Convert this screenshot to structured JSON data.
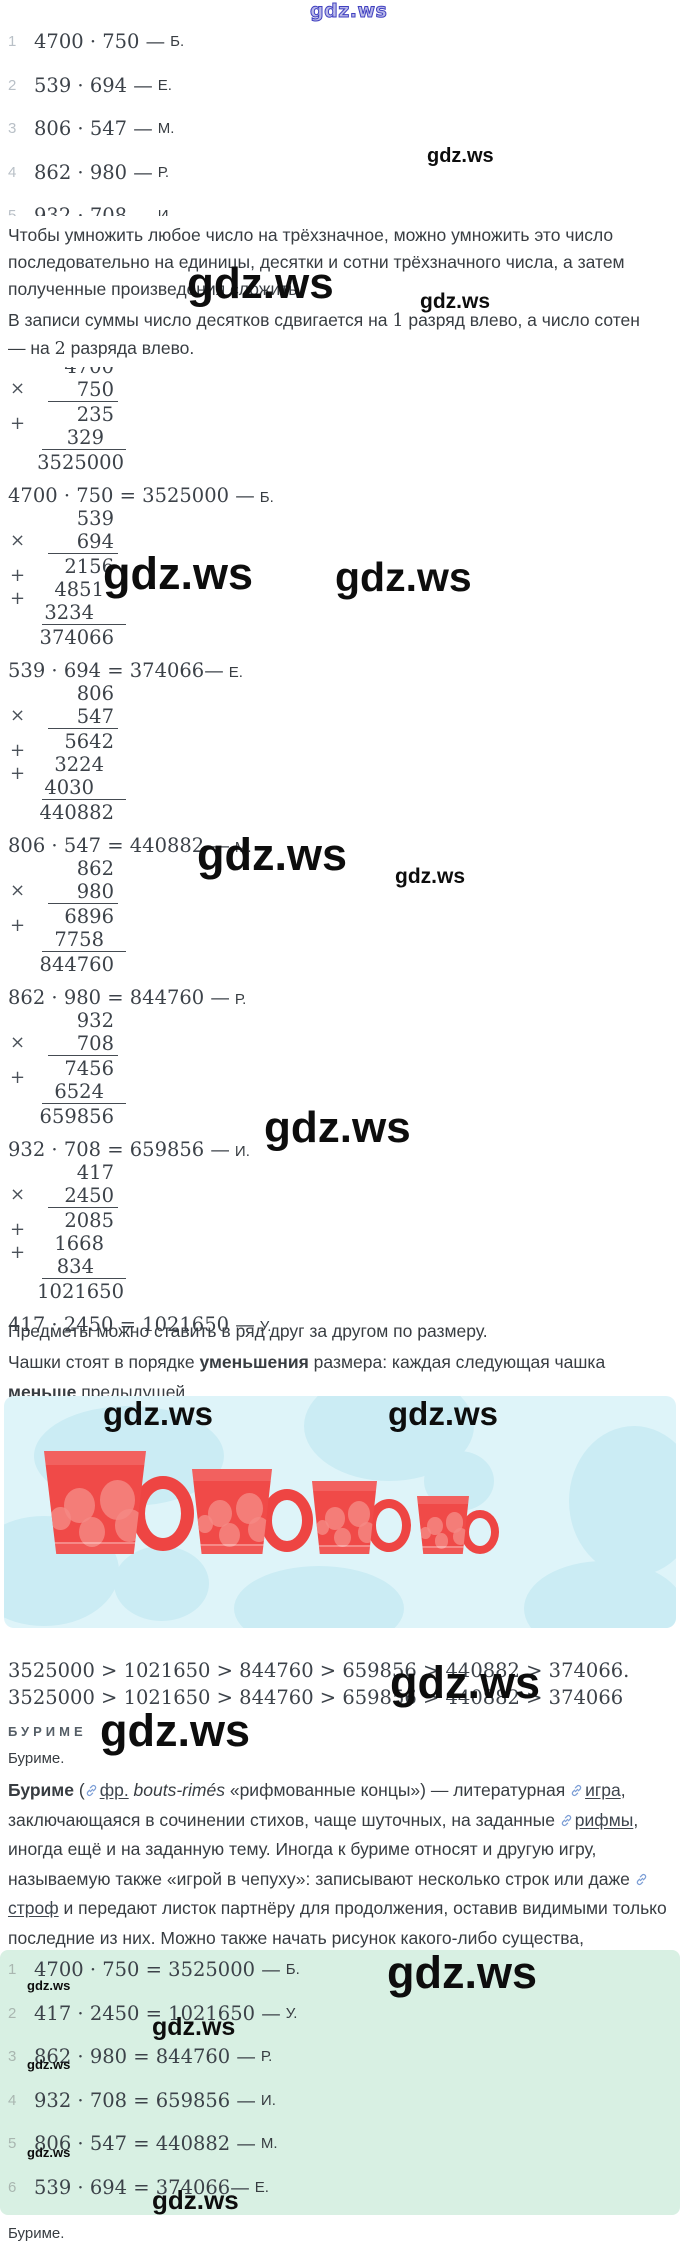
{
  "watermark": {
    "text": "gdz.ws"
  },
  "colors": {
    "answers_panel": "#d8f0e3",
    "cups_bg": "#def4f9",
    "cups_blob": "#cbecf4",
    "cup_red": "#f04a48",
    "link_blue": "#7d9fd6"
  },
  "problems": [
    {
      "num": "1",
      "expr": "4700 · 750 —",
      "letter": "Б."
    },
    {
      "num": "2",
      "expr": "539 · 694 —",
      "letter": "Е."
    },
    {
      "num": "3",
      "expr": "806 · 547 —",
      "letter": "М."
    },
    {
      "num": "4",
      "expr": "862 · 980 —",
      "letter": "Р."
    },
    {
      "num": "5",
      "expr": "932 · 708 —",
      "letter": "И."
    }
  ],
  "explanation": {
    "p1": "Чтобы умножить любое число на трёхзначное, можно умножить это число последовательно на единицы, десятки и сотни трёхзначного числа, а затем полученные произведения сложить.",
    "p2_parts": [
      {
        "style": "text",
        "text": "В записи суммы число десятков сдвигается на "
      },
      {
        "style": "serif",
        "text": "1"
      },
      {
        "style": "text",
        "text": " разряд влево, а число сотен — на "
      },
      {
        "style": "serif",
        "text": "2"
      },
      {
        "style": "text",
        "text": " разряда влево."
      }
    ]
  },
  "multiplications": [
    {
      "factors": [
        "4700",
        "750"
      ],
      "partials": [
        "235",
        "329"
      ],
      "result": "3525000",
      "result_shift": true,
      "equation": {
        "expr": "4700 · 750 = 3525000 —",
        "letter": "Б."
      }
    },
    {
      "factors": [
        "539",
        "694"
      ],
      "partials": [
        "2156",
        "4851",
        "3234"
      ],
      "result": "374066",
      "result_shift": false,
      "equation": {
        "expr": "539 · 694 = 374066—",
        "letter": "Е."
      }
    },
    {
      "factors": [
        "806",
        "547"
      ],
      "partials": [
        "5642",
        "3224",
        "4030"
      ],
      "result": "440882",
      "result_shift": false,
      "equation": {
        "expr": "806 · 547 = 440882 —",
        "letter": "М."
      }
    },
    {
      "factors": [
        "862",
        "980"
      ],
      "partials": [
        "6896",
        "7758"
      ],
      "result": "844760",
      "result_shift": false,
      "equation": {
        "expr": "862 · 980 = 844760 —",
        "letter": "Р."
      }
    },
    {
      "factors": [
        "932",
        "708"
      ],
      "partials": [
        "7456",
        "6524"
      ],
      "result": "659856",
      "result_shift": false,
      "equation": {
        "expr": "932 · 708 = 659856 —",
        "letter": "И."
      }
    },
    {
      "factors": [
        "417",
        "2450"
      ],
      "partials": [
        "2085",
        "1668",
        "834"
      ],
      "result": "1021650",
      "result_shift": true,
      "equation": {
        "expr": "417 · 2450 = 1021650 —",
        "letter": "У."
      }
    }
  ],
  "cups_text": {
    "line1": "Предметы можно ставить в ряд друг за другом по размеру.",
    "parts": [
      {
        "style": "text",
        "text": "Чашки стоят в порядке "
      },
      {
        "style": "bold",
        "text": "уменьшения"
      },
      {
        "style": "text",
        "text": " размера: каждая следующая чашка "
      },
      {
        "style": "bold",
        "text": "меньше"
      },
      {
        "style": "text",
        "text": " предыдущей."
      }
    ]
  },
  "cups_image": {
    "cup_count": 4
  },
  "inequalities": {
    "line1": "3525000 > 1021650 > 844760 > 659856 > 440882 > 374066.",
    "line2": "3525000 > 1021650 > 844760 > 659856 > 440882 > 374066"
  },
  "burime": {
    "caps": "БУРИМЕ",
    "word": "Буриме.",
    "bottom_word": "Буриме.",
    "paragraph_parts": [
      {
        "style": "bold",
        "text": "Буриме"
      },
      {
        "style": "text",
        "text": " ("
      },
      {
        "style": "link",
        "text": "фр."
      },
      {
        "style": "italic",
        "text": " bouts-rimés"
      },
      {
        "style": "text",
        "text": " «рифмованные концы») — литературная "
      },
      {
        "style": "link",
        "text": "игра"
      },
      {
        "style": "text",
        "text": ", заключающаяся в сочинении стихов, чаще шуточных, на заданные "
      },
      {
        "style": "link",
        "text": "рифмы"
      },
      {
        "style": "text",
        "text": ", иногда ещё и на заданную тему. Иногда к буриме относят и другую игру, называемую также «игрой в чепуху»: записывают несколько строк или даже "
      },
      {
        "style": "link",
        "text": "строф"
      },
      {
        "style": "text",
        "text": " и передают листок партнёру для продолжения, оставив видимыми только последние из них. Можно также начать рисунок какого-либо существа, например, с головы, подвернув листок бумаги так, чтобы партнёр видел только шею и дорисовал туловище и так далее (ист. Википедия)"
      }
    ]
  },
  "answers": [
    {
      "num": "1",
      "expr": "4700 · 750 = 3525000 —",
      "letter": "Б."
    },
    {
      "num": "2",
      "expr": "417 · 2450 = 1021650 —",
      "letter": "У."
    },
    {
      "num": "3",
      "expr": "862 · 980 = 844760 —",
      "letter": "Р."
    },
    {
      "num": "4",
      "expr": "932 · 708 = 659856 —",
      "letter": "И."
    },
    {
      "num": "5",
      "expr": "806 · 547 = 440882 —",
      "letter": "М."
    },
    {
      "num": "6",
      "expr": "539 · 694 = 374066—",
      "letter": "Е."
    }
  ]
}
